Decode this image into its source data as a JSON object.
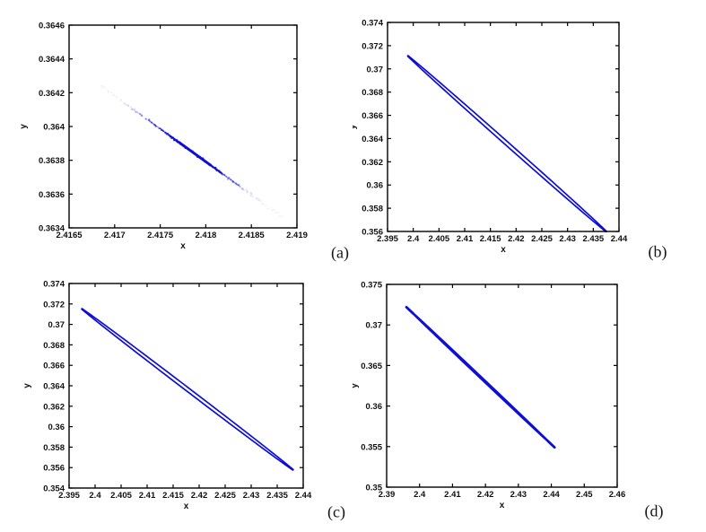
{
  "figure": {
    "description": "Four MATLAB-style phase-plane plots of a narrow attractor in the x-y plane",
    "background_color": "#ffffff",
    "axis_color": "#000000",
    "curve_color": "#0d0ddc"
  },
  "chart_data": [
    {
      "id": "a",
      "caption": "(a)",
      "type": "scatter",
      "xlabel": "x",
      "ylabel": "y",
      "xlim": [
        2.4165,
        2.419
      ],
      "ylim": [
        0.3634,
        0.3646
      ],
      "xtick_values": [
        2.4165,
        2.417,
        2.4175,
        2.418,
        2.4185,
        2.419
      ],
      "xtick_labels": [
        "2.4165",
        "2.417",
        "2.4175",
        "2.418",
        "2.4185",
        "2.419"
      ],
      "ytick_values": [
        0.3634,
        0.3636,
        0.3638,
        0.364,
        0.3642,
        0.3644,
        0.3646
      ],
      "ytick_labels": [
        "0.3634",
        "0.3636",
        "0.3638",
        "0.364",
        "0.3642",
        "0.3644",
        "0.3646"
      ],
      "grid": false,
      "series": {
        "kind": "dotted-segment",
        "description": "sparse light-blue dotted band, dense dark-blue core near the centre",
        "p1": [
          2.41685,
          0.36424
        ],
        "p2": [
          2.41885,
          0.36346
        ],
        "dense_center_t": 0.48,
        "color": "#0d0ddc"
      }
    },
    {
      "id": "b",
      "caption": "(b)",
      "type": "line",
      "xlabel": "x",
      "ylabel": "y",
      "xlim": [
        2.395,
        2.44
      ],
      "ylim": [
        0.356,
        0.374
      ],
      "xtick_values": [
        2.395,
        2.4,
        2.405,
        2.41,
        2.415,
        2.42,
        2.425,
        2.43,
        2.435,
        2.44
      ],
      "xtick_labels": [
        "2.395",
        "2.4",
        "2.405",
        "2.41",
        "2.415",
        "2.42",
        "2.425",
        "2.43",
        "2.435",
        "2.44"
      ],
      "ytick_values": [
        0.356,
        0.358,
        0.36,
        0.362,
        0.364,
        0.366,
        0.368,
        0.37,
        0.372,
        0.374
      ],
      "ytick_labels": [
        "0.356",
        "0.358",
        "0.36",
        "0.362",
        "0.364",
        "0.366",
        "0.368",
        "0.37",
        "0.372",
        "0.374"
      ],
      "grid": false,
      "series": {
        "kind": "thin-loop",
        "description": "very elongated closed loop (two nearly parallel strands with pointed tips)",
        "p1": [
          2.399,
          0.3711
        ],
        "p2": [
          2.4375,
          0.356
        ],
        "minor_frac": 0.0068,
        "color": "#0d0ddc"
      }
    },
    {
      "id": "c",
      "caption": "(c)",
      "type": "line",
      "xlabel": "x",
      "ylabel": "y",
      "xlim": [
        2.395,
        2.44
      ],
      "ylim": [
        0.354,
        0.374
      ],
      "xtick_values": [
        2.395,
        2.4,
        2.405,
        2.41,
        2.415,
        2.42,
        2.425,
        2.43,
        2.435,
        2.44
      ],
      "xtick_labels": [
        "2.395",
        "2.4",
        "2.405",
        "2.41",
        "2.415",
        "2.42",
        "2.425",
        "2.43",
        "2.435",
        "2.44"
      ],
      "ytick_values": [
        0.354,
        0.356,
        0.358,
        0.36,
        0.362,
        0.364,
        0.366,
        0.368,
        0.37,
        0.372,
        0.374
      ],
      "ytick_labels": [
        "0.354",
        "0.356",
        "0.358",
        "0.36",
        "0.362",
        "0.364",
        "0.366",
        "0.368",
        "0.37",
        "0.372",
        "0.374"
      ],
      "grid": false,
      "series": {
        "kind": "thin-loop",
        "description": "very elongated closed loop (two nearly parallel strands with pointed tips)",
        "p1": [
          2.3975,
          0.3715
        ],
        "p2": [
          2.438,
          0.3558
        ],
        "minor_frac": 0.0068,
        "color": "#0d0ddc"
      }
    },
    {
      "id": "d",
      "caption": "(d)",
      "type": "line",
      "xlabel": "x",
      "ylabel": "y",
      "xlim": [
        2.39,
        2.46
      ],
      "ylim": [
        0.35,
        0.375
      ],
      "xtick_values": [
        2.39,
        2.4,
        2.41,
        2.42,
        2.43,
        2.44,
        2.45,
        2.46
      ],
      "xtick_labels": [
        "2.39",
        "2.4",
        "2.41",
        "2.42",
        "2.43",
        "2.44",
        "2.45",
        "2.46"
      ],
      "ytick_values": [
        0.35,
        0.355,
        0.36,
        0.365,
        0.37,
        0.375
      ],
      "ytick_labels": [
        "0.35",
        "0.355",
        "0.36",
        "0.365",
        "0.37",
        "0.375"
      ],
      "grid": false,
      "series": {
        "kind": "thin-loop",
        "description": "almost fully collapsed loop, appears as one thick line with faint doubling",
        "p1": [
          2.396,
          0.3722
        ],
        "p2": [
          2.441,
          0.3549
        ],
        "minor_frac": 0.004,
        "color": "#0d0ddc"
      }
    }
  ]
}
